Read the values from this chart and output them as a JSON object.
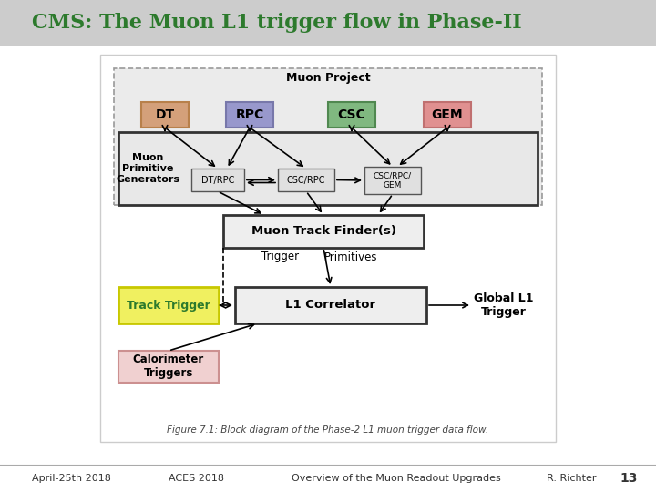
{
  "title": "CMS: The Muon L1 trigger flow in Phase-II",
  "title_color": "#2d7a2d",
  "title_bg": "#cccccc",
  "footer_left": "April-25th 2018",
  "footer_center1": "ACES 2018",
  "footer_center2": "Overview of the Muon Readout Upgrades",
  "footer_right": "R. Richter",
  "footer_page": "13",
  "bg_color": "#ffffff",
  "fig_caption": "Figure 7.1: Block diagram of the Phase-2 L1 muon trigger data flow.",
  "slide_bg": "#f0f0f0"
}
